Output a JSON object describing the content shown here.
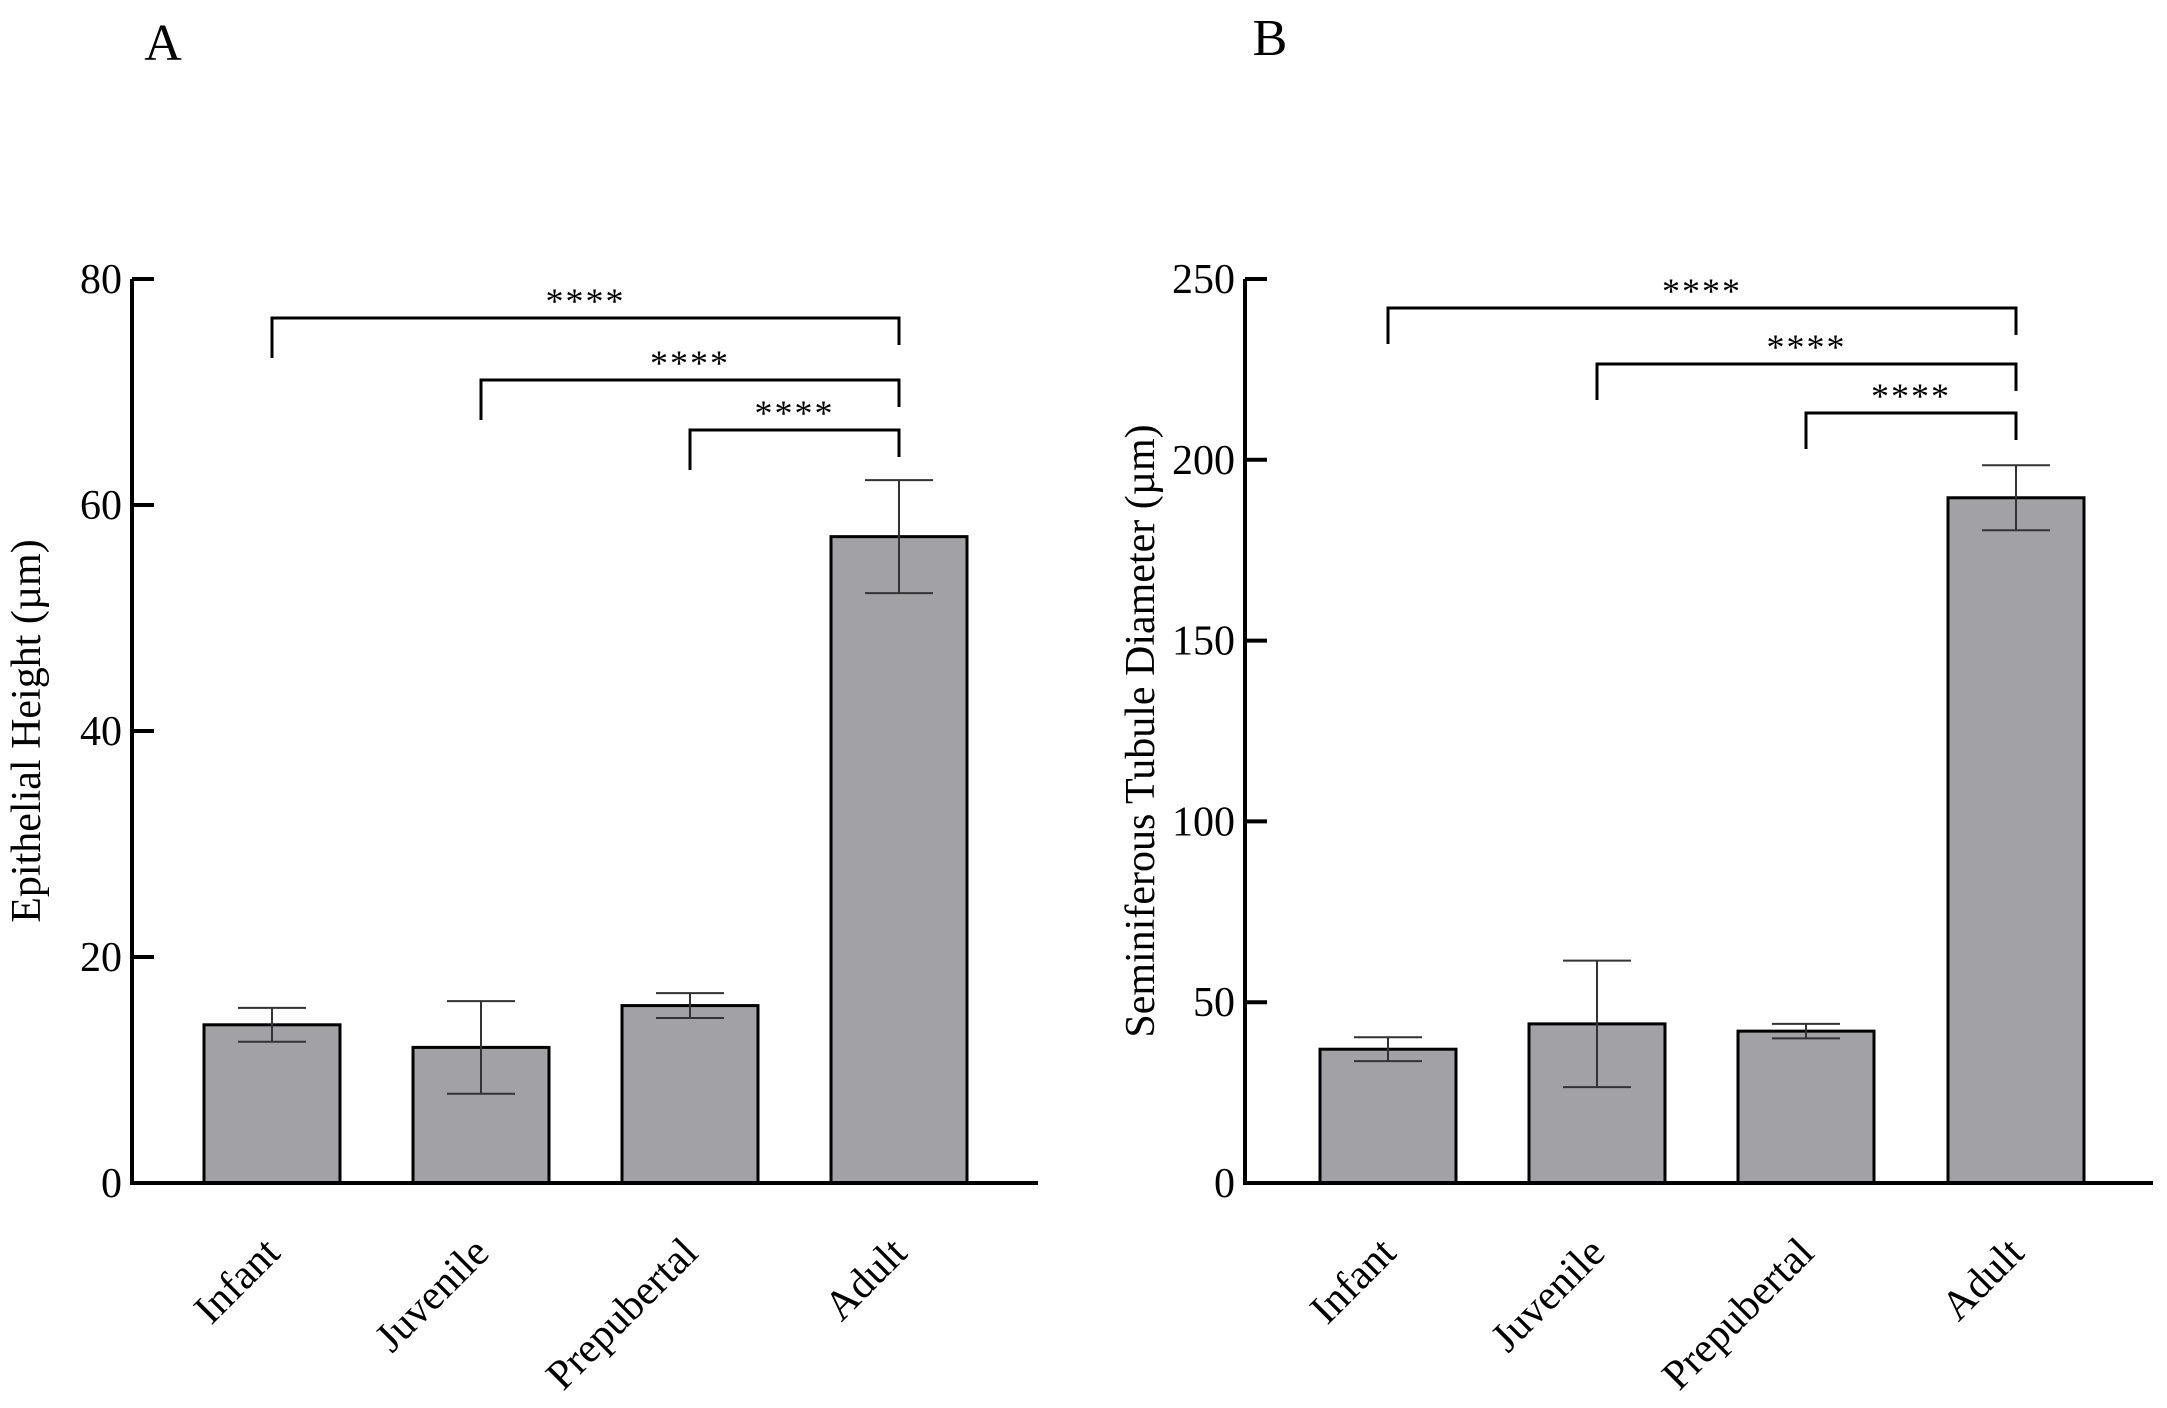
{
  "colors": {
    "bar": "#a2a1a6",
    "ink": "#000000",
    "background": "#ffffff"
  },
  "chart_data": [
    {
      "panel": "A",
      "type": "bar",
      "categories": [
        "Infant",
        "Juvenile",
        "Prepubertal",
        "Adult"
      ],
      "values": [
        14.0,
        12.0,
        15.7,
        57.2
      ],
      "errors": [
        1.5,
        4.1,
        1.1,
        5.0
      ],
      "ylabel": "Epithelial Height (µm)",
      "xlabel": "",
      "ylim": [
        0,
        80
      ],
      "yticks": [
        0,
        20,
        40,
        60,
        80
      ],
      "grid": false,
      "significance": [
        {
          "from": 0,
          "to": 3,
          "label": "****"
        },
        {
          "from": 1,
          "to": 3,
          "label": "****"
        },
        {
          "from": 2,
          "to": 3,
          "label": "****"
        }
      ]
    },
    {
      "panel": "B",
      "type": "bar",
      "categories": [
        "Infant",
        "Juvenile",
        "Prepubertal",
        "Adult"
      ],
      "values": [
        37.0,
        44.0,
        42.0,
        189.5
      ],
      "errors": [
        3.3,
        17.5,
        2.0,
        9.0
      ],
      "ylabel": "Seminiferous Tubule Diameter (µm)",
      "xlabel": "",
      "ylim": [
        0,
        250
      ],
      "yticks": [
        0,
        50,
        100,
        150,
        200,
        250
      ],
      "grid": false,
      "significance": [
        {
          "from": 0,
          "to": 3,
          "label": "****"
        },
        {
          "from": 1,
          "to": 3,
          "label": "****"
        },
        {
          "from": 2,
          "to": 3,
          "label": "****"
        }
      ]
    }
  ]
}
